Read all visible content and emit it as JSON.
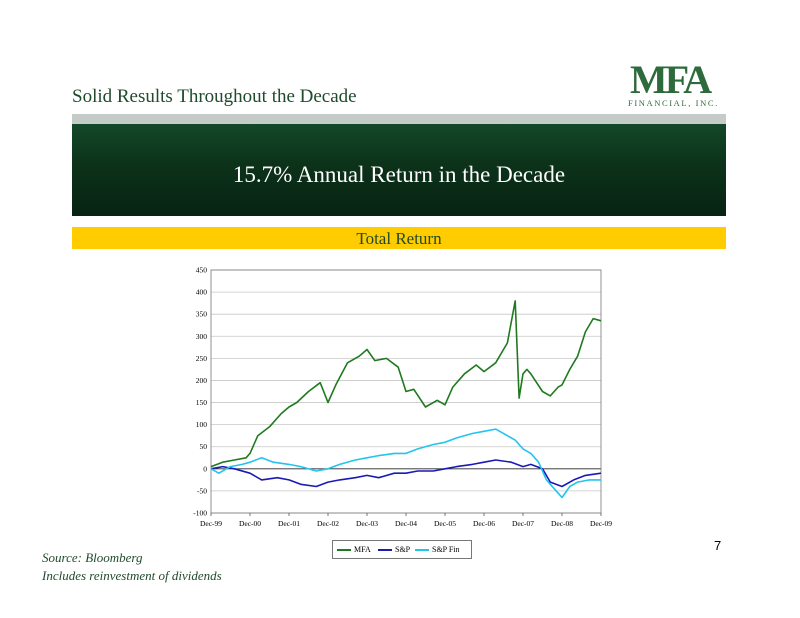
{
  "header": {
    "title": "Solid Results Throughout the Decade"
  },
  "logo": {
    "mark": "MFA",
    "sub": "FINANCIAL, INC."
  },
  "banner": {
    "text": "15.7% Annual Return in the Decade"
  },
  "subbanner": {
    "text": "Total Return"
  },
  "page_number": "7",
  "footnotes": [
    "Source:  Bloomberg",
    "Includes reinvestment of dividends"
  ],
  "colors": {
    "brand_green": "#1f4a2c",
    "banner_dark": "#0c3219",
    "gold": "#ffcc00",
    "mfa": "#1f7a1f",
    "sp": "#1a1ab4",
    "spfin": "#22c4ee"
  },
  "chart_data": {
    "type": "line",
    "title": "",
    "xlabel": "",
    "ylabel": "",
    "categories": [
      "Dec-99",
      "Dec-00",
      "Dec-01",
      "Dec-02",
      "Dec-03",
      "Dec-04",
      "Dec-05",
      "Dec-06",
      "Dec-07",
      "Dec-08",
      "Dec-09"
    ],
    "ylim": [
      -100,
      450
    ],
    "yticks": [
      -100,
      -50,
      0,
      50,
      100,
      150,
      200,
      250,
      300,
      350,
      400,
      450
    ],
    "grid": true,
    "legend": "bottom",
    "series": [
      {
        "name": "MFA",
        "color": "#1f7a1f",
        "x": [
          0,
          0.3,
          0.6,
          0.9,
          1.0,
          1.2,
          1.5,
          1.8,
          2.0,
          2.2,
          2.5,
          2.8,
          3.0,
          3.2,
          3.5,
          3.8,
          4.0,
          4.2,
          4.5,
          4.8,
          5.0,
          5.2,
          5.5,
          5.8,
          6.0,
          6.2,
          6.5,
          6.8,
          7.0,
          7.3,
          7.6,
          7.8,
          7.9,
          8.0,
          8.1,
          8.2,
          8.5,
          8.7,
          8.9,
          9.0,
          9.2,
          9.4,
          9.6,
          9.8,
          10.0
        ],
        "values": [
          5,
          15,
          20,
          25,
          35,
          75,
          95,
          125,
          140,
          150,
          175,
          195,
          150,
          190,
          240,
          255,
          270,
          245,
          250,
          230,
          175,
          180,
          140,
          155,
          145,
          185,
          215,
          235,
          220,
          240,
          285,
          380,
          160,
          215,
          225,
          215,
          175,
          165,
          185,
          190,
          225,
          255,
          310,
          340,
          335
        ]
      },
      {
        "name": "S&P",
        "color": "#1a1ab4",
        "x": [
          0,
          0.3,
          0.6,
          1.0,
          1.3,
          1.7,
          2.0,
          2.3,
          2.7,
          3.0,
          3.3,
          3.7,
          4.0,
          4.3,
          4.7,
          5.0,
          5.3,
          5.7,
          6.0,
          6.3,
          6.7,
          7.0,
          7.3,
          7.7,
          8.0,
          8.2,
          8.5,
          8.7,
          9.0,
          9.3,
          9.6,
          10.0
        ],
        "values": [
          0,
          5,
          0,
          -10,
          -25,
          -20,
          -25,
          -35,
          -40,
          -30,
          -25,
          -20,
          -15,
          -20,
          -10,
          -10,
          -5,
          -5,
          0,
          5,
          10,
          15,
          20,
          15,
          5,
          10,
          0,
          -30,
          -40,
          -25,
          -15,
          -10
        ]
      },
      {
        "name": "S&P Fin",
        "color": "#22c4ee",
        "x": [
          0,
          0.2,
          0.5,
          0.8,
          1.0,
          1.3,
          1.6,
          2.0,
          2.3,
          2.7,
          3.0,
          3.3,
          3.7,
          4.0,
          4.3,
          4.7,
          5.0,
          5.3,
          5.7,
          6.0,
          6.3,
          6.7,
          7.0,
          7.3,
          7.6,
          7.8,
          8.0,
          8.2,
          8.4,
          8.6,
          8.8,
          9.0,
          9.2,
          9.4,
          9.7,
          10.0
        ],
        "values": [
          0,
          -10,
          5,
          10,
          15,
          25,
          15,
          10,
          5,
          -5,
          0,
          10,
          20,
          25,
          30,
          35,
          35,
          45,
          55,
          60,
          70,
          80,
          85,
          90,
          75,
          65,
          45,
          35,
          15,
          -25,
          -45,
          -65,
          -40,
          -30,
          -25,
          -25
        ]
      }
    ]
  }
}
